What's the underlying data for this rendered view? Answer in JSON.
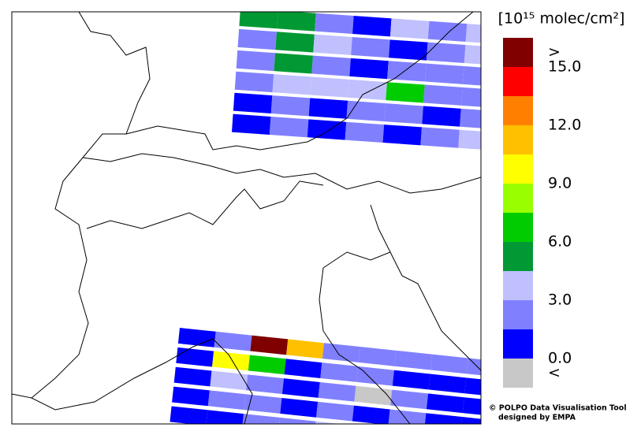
{
  "legend": {
    "unit_label": "[10¹⁵ molec/cm²]",
    "over_label": ">",
    "under_label": "<",
    "colors": [
      "#c8c8c8",
      "#0000ff",
      "#8080ff",
      "#c0c0ff",
      "#009933",
      "#00cc00",
      "#99ff00",
      "#ffff00",
      "#ffc000",
      "#ff8000",
      "#ff0000",
      "#800000"
    ],
    "ticks": [
      {
        "value": 0,
        "label": "0.0"
      },
      {
        "value": 3,
        "label": "3.0"
      },
      {
        "value": 6,
        "label": "6.0"
      },
      {
        "value": 9,
        "label": "9.0"
      },
      {
        "value": 12,
        "label": "12.0"
      },
      {
        "value": 15,
        "label": "15.0"
      }
    ],
    "lim": [
      0,
      15
    ],
    "step": 1.5
  },
  "swaths": [
    {
      "rows": [
        [
          5,
          5,
          2,
          0.5,
          4,
          2.5,
          4
        ],
        [
          2,
          5,
          4,
          2,
          0.5,
          2,
          4
        ],
        [
          2,
          5,
          2,
          0.5,
          2,
          2,
          2
        ],
        [
          2,
          4,
          4,
          4,
          7,
          2,
          2
        ],
        [
          0.5,
          2,
          0.5,
          2,
          2,
          0.5,
          2
        ],
        [
          0.5,
          2,
          0.5,
          2,
          0.5,
          2,
          4
        ]
      ]
    },
    {
      "rows": [
        [
          0.5,
          2,
          16,
          11,
          2,
          2,
          2,
          2,
          2
        ],
        [
          0.5,
          10,
          7,
          0.5,
          2,
          2,
          0.5,
          0.5,
          0.5
        ],
        [
          0.5,
          4,
          2,
          0.5,
          2,
          -1,
          2,
          0.5,
          0.5
        ],
        [
          0.5,
          2,
          2,
          0.5,
          2,
          0.5,
          2,
          0.5,
          0.5
        ],
        [
          0.5,
          0.5,
          2,
          2,
          4,
          2,
          2,
          0.5,
          -1
        ]
      ]
    }
  ],
  "credit": {
    "line1": "© POLPO Data Visualisation Tool",
    "line2": "designed by EMPA"
  }
}
